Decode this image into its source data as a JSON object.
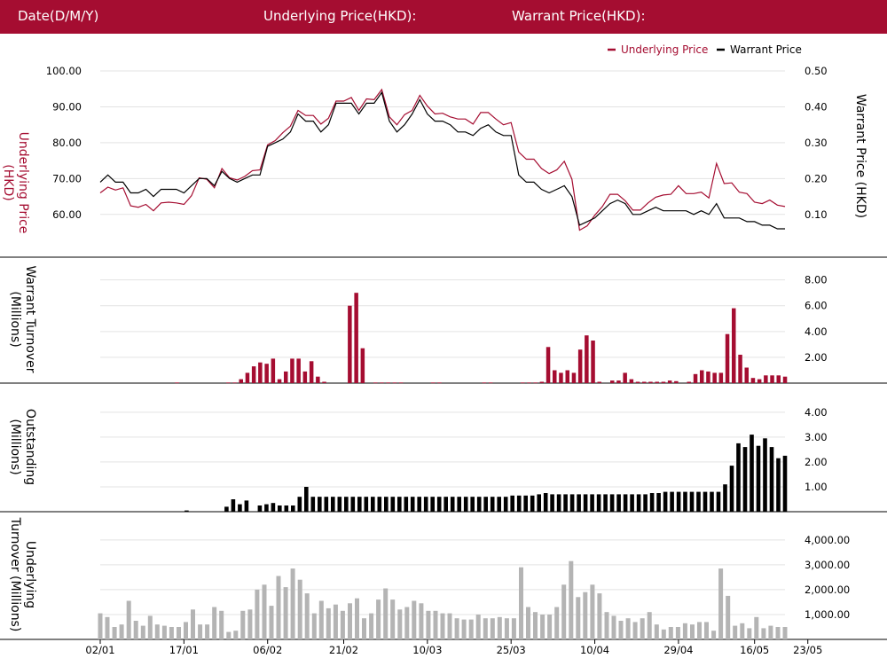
{
  "header": {
    "date_label": "Date(D/M/Y)",
    "underlying_label": "Underlying Price(HKD):",
    "warrant_label": "Warrant Price(HKD):"
  },
  "colors": {
    "underlying": "#a50d31",
    "warrant": "#000000",
    "underlying_turnover": "#b4b4b4",
    "grid": "#e3e3e3"
  },
  "chart_data": [
    {
      "type": "line",
      "panel": "price",
      "legend_position": "top-right",
      "ylabel_left": "Underlying Price (HKD)",
      "ylabel_right": "Warrant  Price (HKD)",
      "ylim_left": [
        55,
        100
      ],
      "ylim_right": [
        0.05,
        0.5
      ],
      "yticks_left": [
        "100.00",
        "90.00",
        "80.00",
        "70.00",
        "60.00"
      ],
      "yticks_right": [
        "0.50",
        "0.40",
        "0.30",
        "0.20",
        "0.10"
      ],
      "x_tick_labels": [
        "02/01",
        "17/01",
        "06/02",
        "21/02",
        "10/03",
        "25/03",
        "10/04",
        "29/04",
        "16/05",
        "23/05"
      ],
      "x_tick_index": [
        0,
        11,
        22,
        32,
        43,
        54,
        65,
        76,
        86,
        93
      ],
      "series": [
        {
          "name": "Underlying Price",
          "axis": "left",
          "values": [
            66.0,
            67.6,
            66.8,
            67.4,
            62.4,
            62.0,
            62.8,
            61.0,
            63.2,
            63.4,
            63.2,
            62.8,
            65.2,
            70.2,
            69.8,
            67.4,
            72.8,
            70.2,
            69.6,
            70.6,
            72.2,
            72.4,
            79.4,
            80.6,
            82.8,
            84.6,
            89.0,
            87.6,
            87.6,
            85.2,
            86.8,
            91.6,
            91.6,
            92.6,
            89.0,
            92.2,
            92.0,
            94.8,
            87.2,
            85.0,
            87.8,
            89.0,
            93.2,
            90.2,
            88.0,
            88.2,
            87.2,
            86.6,
            86.6,
            85.2,
            88.4,
            88.4,
            86.6,
            85.0,
            85.6,
            77.4,
            75.4,
            75.4,
            72.8,
            71.4,
            72.4,
            74.8,
            69.8,
            55.6,
            56.8,
            59.8,
            62.2,
            65.6,
            65.6,
            63.8,
            61.2,
            61.2,
            63.2,
            64.8,
            65.4,
            65.6,
            68.0,
            65.8,
            65.8,
            66.2,
            64.6,
            74.2,
            68.6,
            68.8,
            66.2,
            65.8,
            63.4,
            63.0,
            64.0,
            62.6,
            62.2
          ]
        },
        {
          "name": "Warrant Price",
          "axis": "right",
          "values": [
            0.19,
            0.21,
            0.19,
            0.19,
            0.16,
            0.16,
            0.17,
            0.15,
            0.17,
            0.17,
            0.17,
            0.16,
            0.18,
            0.2,
            0.2,
            0.18,
            0.22,
            0.2,
            0.19,
            0.2,
            0.21,
            0.21,
            0.29,
            0.3,
            0.31,
            0.33,
            0.38,
            0.36,
            0.36,
            0.33,
            0.35,
            0.41,
            0.41,
            0.41,
            0.38,
            0.41,
            0.41,
            0.44,
            0.36,
            0.33,
            0.35,
            0.38,
            0.42,
            0.38,
            0.36,
            0.36,
            0.35,
            0.33,
            0.33,
            0.32,
            0.34,
            0.35,
            0.33,
            0.32,
            0.32,
            0.21,
            0.19,
            0.19,
            0.17,
            0.16,
            0.17,
            0.18,
            0.15,
            0.07,
            0.08,
            0.09,
            0.11,
            0.13,
            0.14,
            0.13,
            0.1,
            0.1,
            0.11,
            0.12,
            0.11,
            0.11,
            0.11,
            0.11,
            0.1,
            0.11,
            0.1,
            0.13,
            0.09,
            0.09,
            0.09,
            0.08,
            0.08,
            0.07,
            0.07,
            0.06,
            0.06
          ]
        }
      ]
    },
    {
      "type": "bar",
      "panel": "warrant_turnover",
      "ylabel": "Warrant  Turnover (Millions)",
      "ylim": [
        0,
        8.8
      ],
      "yticks": [
        "8.00",
        "6.00",
        "4.00",
        "2.00"
      ],
      "values": [
        0,
        0,
        0,
        0,
        0,
        0,
        0,
        0,
        0,
        0,
        0,
        0,
        0.05,
        0,
        0,
        0,
        0,
        0,
        0,
        0,
        0.05,
        0.05,
        0.3,
        0.8,
        1.3,
        1.6,
        1.5,
        1.9,
        0.3,
        0.9,
        1.9,
        1.9,
        0.9,
        1.7,
        0.5,
        0.1,
        0,
        0,
        0,
        6.0,
        7.0,
        2.7,
        0,
        0.05,
        0.05,
        0.05,
        0.05,
        0.05,
        0,
        0,
        0,
        0,
        0.05,
        0.05,
        0,
        0,
        0,
        0,
        0,
        0,
        0.05,
        0.05,
        0,
        0,
        0,
        0,
        0.05,
        0.05,
        0.05,
        0.1,
        2.8,
        1.0,
        0.8,
        1.0,
        0.8,
        2.6,
        3.7,
        3.3,
        0.1,
        0,
        0.2,
        0.2,
        0.8,
        0.3,
        0.1,
        0.1,
        0.1,
        0.1,
        0.1,
        0.2,
        0.15,
        0,
        0.1,
        0.7,
        1.0,
        0.9,
        0.8,
        0.8,
        3.8,
        5.8,
        2.2,
        1.2,
        0.4,
        0.3,
        0.6,
        0.6,
        0.6,
        0.5
      ]
    },
    {
      "type": "bar",
      "panel": "outstanding",
      "ylabel": "Outstanding (Millions)",
      "ylim": [
        0,
        4.6
      ],
      "yticks": [
        "4.00",
        "3.00",
        "2.00",
        "1.00"
      ],
      "values": [
        0,
        0,
        0,
        0,
        0,
        0,
        0,
        0,
        0,
        0,
        0,
        0,
        0,
        0.05,
        0,
        0,
        0,
        0,
        0,
        0.2,
        0.5,
        0.3,
        0.45,
        0,
        0.25,
        0.3,
        0.35,
        0.25,
        0.25,
        0.25,
        0.6,
        1.0,
        0.6,
        0.6,
        0.6,
        0.6,
        0.6,
        0.6,
        0.6,
        0.6,
        0.6,
        0.6,
        0.6,
        0.6,
        0.6,
        0.6,
        0.6,
        0.6,
        0.6,
        0.6,
        0.6,
        0.6,
        0.6,
        0.6,
        0.6,
        0.6,
        0.6,
        0.6,
        0.6,
        0.6,
        0.6,
        0.6,
        0.65,
        0.65,
        0.65,
        0.65,
        0.7,
        0.75,
        0.7,
        0.7,
        0.7,
        0.7,
        0.7,
        0.7,
        0.7,
        0.7,
        0.7,
        0.7,
        0.7,
        0.7,
        0.7,
        0.7,
        0.7,
        0.75,
        0.75,
        0.8,
        0.8,
        0.8,
        0.8,
        0.8,
        0.8,
        0.8,
        0.8,
        0.8,
        1.1,
        1.85,
        2.75,
        2.6,
        3.1,
        2.65,
        2.95,
        2.6,
        2.15,
        2.25
      ]
    },
    {
      "type": "bar",
      "panel": "underlying_turnover",
      "ylabel": "Underlying Turnover (Millions)",
      "ylim": [
        0,
        4600
      ],
      "yticks": [
        "4,000.00",
        "3,000.00",
        "2,000.00",
        "1,000.00"
      ],
      "x_tick_labels": [
        "02/01",
        "17/01",
        "06/02",
        "21/02",
        "10/03",
        "25/03",
        "10/04",
        "29/04",
        "16/05",
        "23/05"
      ],
      "values": [
        1050,
        900,
        500,
        600,
        1550,
        750,
        550,
        950,
        600,
        550,
        500,
        500,
        700,
        1200,
        600,
        600,
        1300,
        1150,
        300,
        350,
        1150,
        1200,
        2000,
        2200,
        1350,
        2550,
        2100,
        2850,
        2400,
        1850,
        1050,
        1550,
        1250,
        1400,
        1150,
        1450,
        1650,
        850,
        1050,
        1600,
        2050,
        1600,
        1200,
        1300,
        1550,
        1450,
        1150,
        1150,
        1050,
        1050,
        850,
        800,
        800,
        1000,
        850,
        850,
        900,
        850,
        850,
        2900,
        1300,
        1100,
        1000,
        1000,
        1300,
        2200,
        3150,
        1700,
        1900,
        2200,
        1850,
        1100,
        950,
        750,
        850,
        700,
        850,
        1100,
        600,
        400,
        500,
        500,
        650,
        600,
        700,
        700,
        350,
        2850,
        1750,
        550,
        650,
        450,
        900,
        450,
        550,
        500,
        500
      ]
    }
  ],
  "legend": {
    "underlying": "Underlying Price",
    "warrant": "Warrant Price"
  }
}
